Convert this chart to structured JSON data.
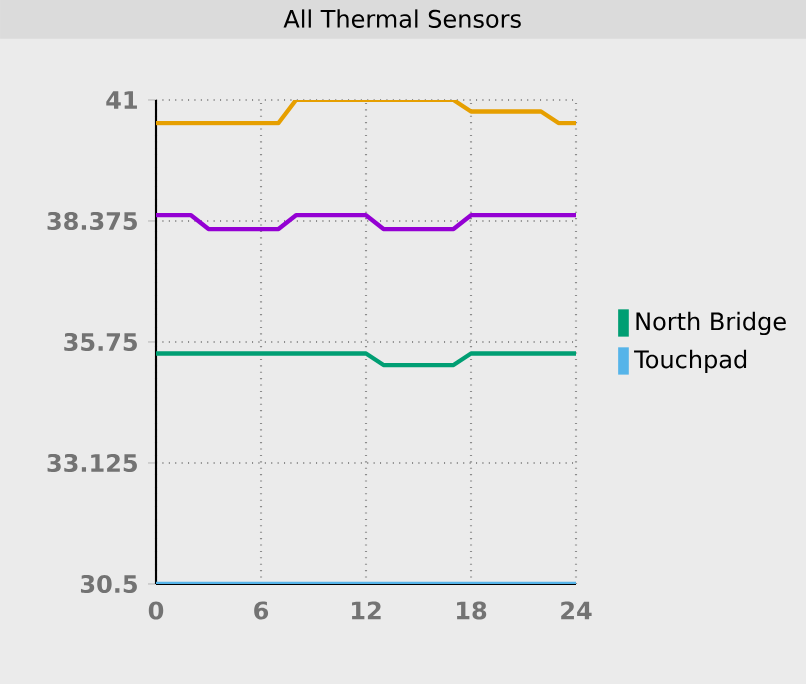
{
  "chart_data": {
    "type": "line",
    "title": "All Thermal Sensors",
    "xlim": [
      0,
      24
    ],
    "xticks": [
      0,
      6,
      12,
      18,
      24
    ],
    "ylim": [
      30.5,
      41
    ],
    "yticks": [
      30.5,
      33.125,
      35.75,
      38.375,
      41
    ],
    "grid": true,
    "legend": "right",
    "marker": "none",
    "line_style": "solid",
    "series": [
      {
        "color": "#9400d3",
        "x": [
          0,
          2,
          3,
          7,
          8,
          12,
          13,
          17,
          18,
          24
        ],
        "values": [
          38.5,
          38.5,
          38.2,
          38.2,
          38.5,
          38.5,
          38.2,
          38.2,
          38.5,
          38.5
        ]
      },
      {
        "name": "North Bridge",
        "color": "#009e73",
        "x": [
          0,
          12,
          13,
          17,
          18,
          24
        ],
        "values": [
          35.5,
          35.5,
          35.25,
          35.25,
          35.5,
          35.5
        ]
      },
      {
        "name": "Touchpad",
        "color": "#56b4e9",
        "x": [
          0,
          24
        ],
        "values": [
          30.5,
          30.5
        ]
      },
      {
        "color": "#e69f00",
        "x": [
          0,
          7,
          8,
          17,
          18,
          22,
          23,
          24
        ],
        "values": [
          40.5,
          40.5,
          41,
          41,
          40.75,
          40.75,
          40.5,
          40.5
        ]
      }
    ]
  }
}
